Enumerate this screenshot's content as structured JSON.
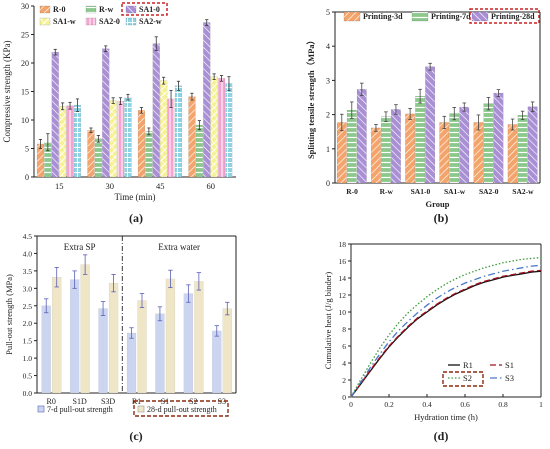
{
  "panel_labels": [
    "(a)",
    "(b)",
    "(c)",
    "(d)"
  ],
  "colors": {
    "R-0": "#f4a46a",
    "R-w": "#8cc88c",
    "SA1-0": "#a98fd4",
    "SA1-w": "#f7f291",
    "SA2-0": "#f6a3d0",
    "SA2-w": "#8dd3e3",
    "p3": "#f4a46a",
    "p7": "#8cc88c",
    "p28": "#a98fd4",
    "d7": "#ccd5f0",
    "d28": "#efe6c8",
    "err_c": "#5a5fb5",
    "highlight": "#cc2222",
    "highlight_c": "#8b2c10"
  },
  "chart_data": [
    {
      "type": "bar",
      "panel": "(a)",
      "categories": [
        "15",
        "30",
        "45",
        "60"
      ],
      "xlabel": "Time (min)",
      "ylabel": "Compressive strength (KPa)",
      "ylim": [
        0,
        30
      ],
      "yticks": [
        "0",
        "5",
        "10",
        "15",
        "20",
        "25",
        "30"
      ],
      "legend": "top-left",
      "highlighted": "SA1-0",
      "series": [
        {
          "name": "R-0",
          "values": [
            5.8,
            8.2,
            11.7,
            14.1
          ],
          "err": [
            0.8,
            0.4,
            0.5,
            0.6
          ]
        },
        {
          "name": "R-w",
          "values": [
            6.1,
            6.7,
            8.0,
            9.1
          ],
          "err": [
            1.5,
            0.6,
            0.6,
            0.8
          ]
        },
        {
          "name": "SA1-0",
          "values": [
            21.9,
            22.5,
            23.4,
            27.1
          ],
          "err": [
            0.5,
            0.5,
            1.2,
            0.5
          ]
        },
        {
          "name": "SA1-w",
          "values": [
            12.4,
            13.4,
            16.9,
            17.6
          ],
          "err": [
            0.6,
            0.5,
            0.6,
            0.5
          ]
        },
        {
          "name": "SA2-0",
          "values": [
            12.5,
            13.3,
            13.7,
            17.3
          ],
          "err": [
            0.6,
            0.6,
            1.5,
            0.5
          ]
        },
        {
          "name": "SA2-w",
          "values": [
            12.6,
            14.0,
            16.0,
            16.4
          ],
          "err": [
            1.1,
            0.5,
            0.8,
            1.2
          ]
        }
      ]
    },
    {
      "type": "bar",
      "panel": "(b)",
      "categories": [
        "R-0",
        "R-w",
        "SA1-0",
        "SA1-w",
        "SA2-0",
        "SA2-w"
      ],
      "xlabel": "Group",
      "ylabel": "Splitting tensile strength（MPa）",
      "ylim": [
        0,
        5
      ],
      "yticks": [
        "0",
        "1",
        "2",
        "3",
        "4",
        "5"
      ],
      "legend": "top",
      "highlighted": "Printing-28d",
      "series": [
        {
          "name": "Printing-3d",
          "values": [
            1.77,
            1.61,
            2.02,
            1.77,
            1.77,
            1.71
          ],
          "err": [
            0.24,
            0.1,
            0.16,
            0.18,
            0.22,
            0.16
          ]
        },
        {
          "name": "Printing-7d",
          "values": [
            2.13,
            1.94,
            2.54,
            2.03,
            2.32,
            1.98
          ],
          "err": [
            0.24,
            0.14,
            0.2,
            0.18,
            0.18,
            0.12
          ]
        },
        {
          "name": "Printing-28d",
          "values": [
            2.74,
            2.15,
            3.4,
            2.22,
            2.63,
            2.23
          ],
          "err": [
            0.18,
            0.14,
            0.1,
            0.12,
            0.1,
            0.14
          ]
        }
      ]
    },
    {
      "type": "bar",
      "panel": "(c)",
      "categories": [
        "R0",
        "S1D",
        "S3D",
        "R1",
        "S1",
        "S2",
        "S3"
      ],
      "groups": [
        "Extra SP",
        "Extra water"
      ],
      "xlabel": "",
      "ylabel": "Pull-out strength (MPa)",
      "ylim": [
        0,
        4.5
      ],
      "yticks": [
        "0.0",
        "0.5",
        "1.0",
        "1.5",
        "2.0",
        "2.5",
        "3.0",
        "3.5",
        "4.0",
        "4.5"
      ],
      "legend": "bottom",
      "highlighted": "28-d pull-out strength",
      "series": [
        {
          "name": "7-d pull-out strength",
          "values": [
            2.5,
            3.25,
            2.42,
            1.72,
            2.27,
            2.85,
            1.78
          ],
          "err": [
            0.2,
            0.25,
            0.2,
            0.15,
            0.2,
            0.25,
            0.15
          ]
        },
        {
          "name": "28-d pull-out strength",
          "values": [
            3.32,
            3.68,
            3.15,
            2.65,
            3.27,
            3.2,
            2.42
          ],
          "err": [
            0.28,
            0.28,
            0.25,
            0.2,
            0.25,
            0.25,
            0.18
          ]
        }
      ]
    },
    {
      "type": "line",
      "panel": "(d)",
      "xlabel": "Hydration time (h)",
      "ylabel": "Cumulative heat (J/g binder)",
      "xlim": [
        0,
        1
      ],
      "ylim": [
        0,
        18
      ],
      "xticks": [
        "0",
        "0.2",
        "0.4",
        "0.6",
        "0.8",
        "1"
      ],
      "yticks": [
        "0",
        "2",
        "4",
        "6",
        "8",
        "10",
        "12",
        "14",
        "16",
        "18"
      ],
      "legend": "bottom-right",
      "highlighted": "S2",
      "x": [
        0,
        0.05,
        0.1,
        0.15,
        0.2,
        0.25,
        0.3,
        0.35,
        0.4,
        0.45,
        0.5,
        0.55,
        0.6,
        0.65,
        0.7,
        0.75,
        0.8,
        0.85,
        0.9,
        0.95,
        1.0
      ],
      "series": [
        {
          "name": "R1",
          "color": "#111111",
          "dash": "",
          "values": [
            0,
            1.5,
            3.0,
            4.5,
            5.9,
            7.1,
            8.2,
            9.2,
            10.0,
            10.8,
            11.5,
            12.1,
            12.6,
            13.1,
            13.5,
            13.8,
            14.1,
            14.3,
            14.5,
            14.7,
            14.8
          ]
        },
        {
          "name": "S1",
          "color": "#a01020",
          "dash": "6,3",
          "values": [
            0,
            1.55,
            3.1,
            4.6,
            6.0,
            7.2,
            8.3,
            9.3,
            10.1,
            10.9,
            11.6,
            12.2,
            12.7,
            13.2,
            13.6,
            13.9,
            14.2,
            14.4,
            14.6,
            14.8,
            14.9
          ]
        },
        {
          "name": "S2",
          "color": "#3e9a3a",
          "dash": "1.5,2",
          "values": [
            0,
            2.0,
            3.9,
            5.7,
            7.3,
            8.7,
            9.9,
            10.9,
            11.8,
            12.6,
            13.3,
            13.9,
            14.4,
            14.8,
            15.2,
            15.5,
            15.8,
            16.0,
            16.2,
            16.3,
            16.4
          ]
        },
        {
          "name": "S3",
          "color": "#4a78c8",
          "dash": "7,3,1.5,3",
          "values": [
            0,
            1.7,
            3.4,
            5.0,
            6.5,
            7.8,
            8.9,
            9.9,
            10.8,
            11.6,
            12.3,
            12.9,
            13.4,
            13.8,
            14.2,
            14.5,
            14.8,
            15.0,
            15.2,
            15.4,
            15.5
          ]
        }
      ]
    }
  ]
}
